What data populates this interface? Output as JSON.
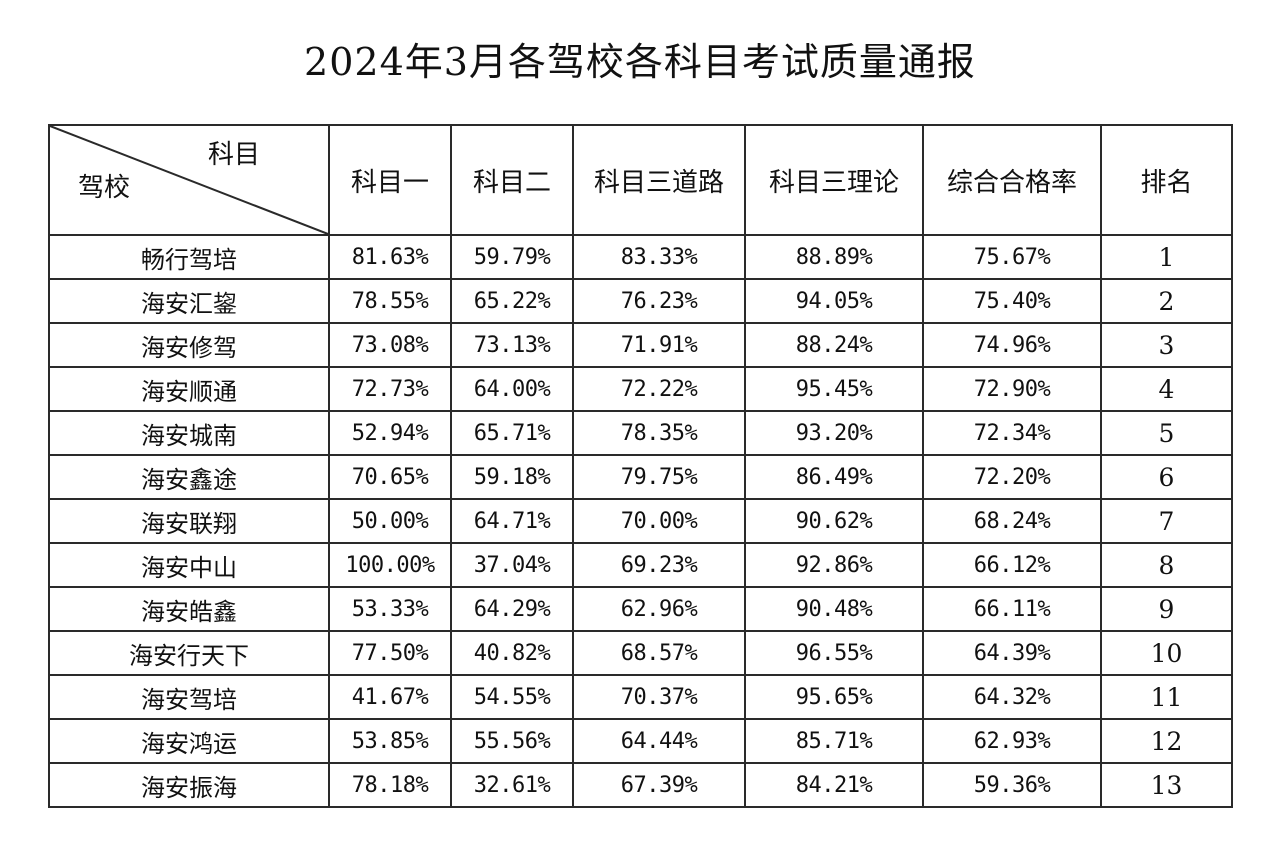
{
  "title": "2024年3月各驾校各科目考试质量通报",
  "table": {
    "corner_top": "科目",
    "corner_bottom": "驾校",
    "headers": [
      "科目一",
      "科目二",
      "科目三道路",
      "科目三理论",
      "综合合格率",
      "排名"
    ],
    "rows": [
      {
        "school": "畅行驾培",
        "s1": "81.63%",
        "s2": "59.79%",
        "s3road": "83.33%",
        "s3theory": "88.89%",
        "overall": "75.67%",
        "rank": "1"
      },
      {
        "school": "海安汇鋆",
        "s1": "78.55%",
        "s2": "65.22%",
        "s3road": "76.23%",
        "s3theory": "94.05%",
        "overall": "75.40%",
        "rank": "2"
      },
      {
        "school": "海安修驾",
        "s1": "73.08%",
        "s2": "73.13%",
        "s3road": "71.91%",
        "s3theory": "88.24%",
        "overall": "74.96%",
        "rank": "3"
      },
      {
        "school": "海安顺通",
        "s1": "72.73%",
        "s2": "64.00%",
        "s3road": "72.22%",
        "s3theory": "95.45%",
        "overall": "72.90%",
        "rank": "4"
      },
      {
        "school": "海安城南",
        "s1": "52.94%",
        "s2": "65.71%",
        "s3road": "78.35%",
        "s3theory": "93.20%",
        "overall": "72.34%",
        "rank": "5"
      },
      {
        "school": "海安鑫途",
        "s1": "70.65%",
        "s2": "59.18%",
        "s3road": "79.75%",
        "s3theory": "86.49%",
        "overall": "72.20%",
        "rank": "6"
      },
      {
        "school": "海安联翔",
        "s1": "50.00%",
        "s2": "64.71%",
        "s3road": "70.00%",
        "s3theory": "90.62%",
        "overall": "68.24%",
        "rank": "7"
      },
      {
        "school": "海安中山",
        "s1": "100.00%",
        "s2": "37.04%",
        "s3road": "69.23%",
        "s3theory": "92.86%",
        "overall": "66.12%",
        "rank": "8"
      },
      {
        "school": "海安皓鑫",
        "s1": "53.33%",
        "s2": "64.29%",
        "s3road": "62.96%",
        "s3theory": "90.48%",
        "overall": "66.11%",
        "rank": "9"
      },
      {
        "school": "海安行天下",
        "s1": "77.50%",
        "s2": "40.82%",
        "s3road": "68.57%",
        "s3theory": "96.55%",
        "overall": "64.39%",
        "rank": "10"
      },
      {
        "school": "海安驾培",
        "s1": "41.67%",
        "s2": "54.55%",
        "s3road": "70.37%",
        "s3theory": "95.65%",
        "overall": "64.32%",
        "rank": "11"
      },
      {
        "school": "海安鸿运",
        "s1": "53.85%",
        "s2": "55.56%",
        "s3road": "64.44%",
        "s3theory": "85.71%",
        "overall": "62.93%",
        "rank": "12"
      },
      {
        "school": "海安振海",
        "s1": "78.18%",
        "s2": "32.61%",
        "s3road": "67.39%",
        "s3theory": "84.21%",
        "overall": "59.36%",
        "rank": "13"
      }
    ]
  }
}
